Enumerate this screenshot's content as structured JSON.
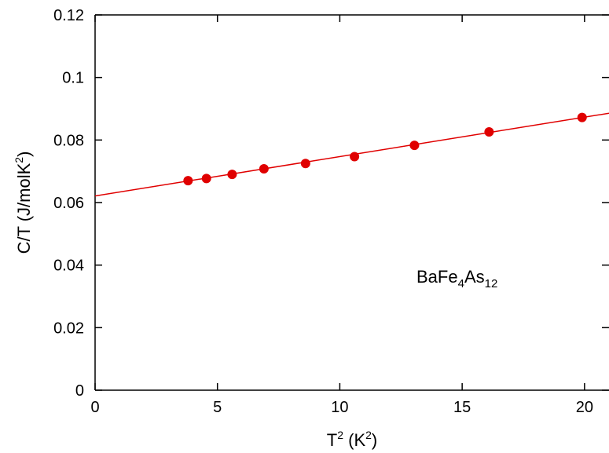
{
  "chart_data": {
    "type": "scatter",
    "xlabel": {
      "base": "T",
      "sup": "2",
      "unit_open": " (K",
      "unit_sup": "2",
      "unit_close": ")"
    },
    "ylabel": {
      "base": "C/T (J/molK",
      "sup": "2",
      "close": ")"
    },
    "xlim": [
      0,
      21
    ],
    "ylim": [
      0,
      0.12
    ],
    "x_ticks": [
      0,
      5,
      10,
      15,
      20
    ],
    "x_tick_labels": [
      "0",
      "5",
      "10",
      "15",
      "20"
    ],
    "y_ticks": [
      0,
      0.02,
      0.04,
      0.06,
      0.08,
      0.1,
      0.12
    ],
    "y_tick_labels": [
      "0",
      "0.02",
      "0.04",
      "0.06",
      "0.08",
      "0.1",
      "0.12"
    ],
    "grid": false,
    "annotation": {
      "base": "BaFe",
      "sub1": "4",
      "mid": "As",
      "sub2": "12"
    },
    "series": [
      {
        "color": "#e00000",
        "x": [
          3.8,
          4.55,
          5.6,
          6.9,
          8.6,
          10.6,
          13.05,
          16.1,
          19.9
        ],
        "y": [
          0.067,
          0.0677,
          0.069,
          0.0708,
          0.0725,
          0.0747,
          0.0783,
          0.0826,
          0.0872
        ]
      }
    ],
    "fit_line": {
      "color": "#e00000",
      "intercept": 0.0621,
      "slope": 0.00126
    }
  }
}
